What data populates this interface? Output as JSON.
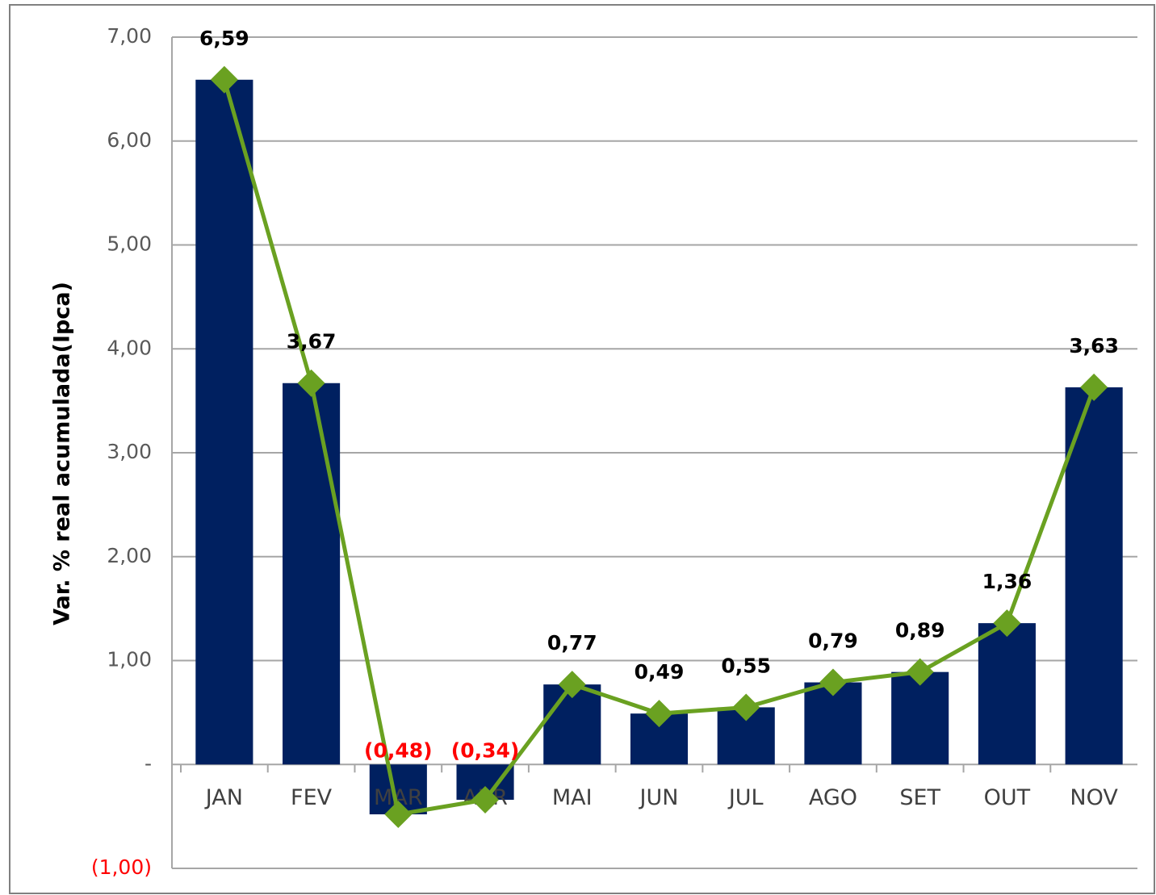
{
  "chart_data": {
    "type": "bar_line",
    "y_axis_label": "Var. % real acumulada(Ipca)",
    "categories": [
      "JAN",
      "FEV",
      "MAR",
      "ABR",
      "MAI",
      "JUN",
      "JUL",
      "AGO",
      "SET",
      "OUT",
      "NOV"
    ],
    "values": [
      6.59,
      3.67,
      -0.48,
      -0.34,
      0.77,
      0.49,
      0.55,
      0.79,
      0.89,
      1.36,
      3.63
    ],
    "value_labels": [
      "6,59",
      "3,67",
      "(0,48)",
      "(0,34)",
      "0,77",
      "0,49",
      "0,55",
      "0,79",
      "0,89",
      "1,36",
      "3,63"
    ],
    "color": "#002060",
    "line_color": "#6aa121",
    "negative_color": "#ff0000",
    "ylim": [
      -1,
      7
    ],
    "yticks": [
      {
        "value": -1,
        "label": "(1,00)"
      },
      {
        "value": 0,
        "label": "-"
      },
      {
        "value": 1,
        "label": "1,00"
      },
      {
        "value": 2,
        "label": "2,00"
      },
      {
        "value": 3,
        "label": "3,00"
      },
      {
        "value": 4,
        "label": "4,00"
      },
      {
        "value": 5,
        "label": "5,00"
      },
      {
        "value": 6,
        "label": "6,00"
      },
      {
        "value": 7,
        "label": "7,00"
      }
    ],
    "grid": true
  }
}
